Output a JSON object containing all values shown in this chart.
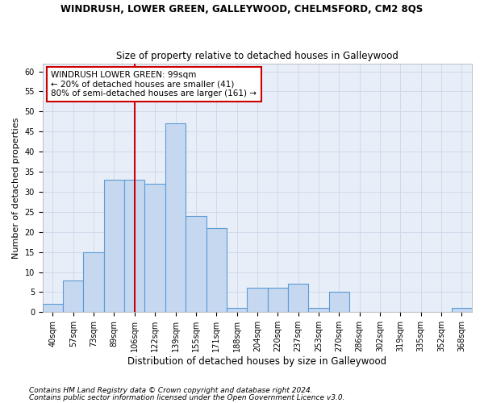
{
  "title": "WINDRUSH, LOWER GREEN, GALLEYWOOD, CHELMSFORD, CM2 8QS",
  "subtitle": "Size of property relative to detached houses in Galleywood",
  "xlabel": "Distribution of detached houses by size in Galleywood",
  "ylabel": "Number of detached properties",
  "categories": [
    "40sqm",
    "57sqm",
    "73sqm",
    "89sqm",
    "106sqm",
    "122sqm",
    "139sqm",
    "155sqm",
    "171sqm",
    "188sqm",
    "204sqm",
    "220sqm",
    "237sqm",
    "253sqm",
    "270sqm",
    "286sqm",
    "302sqm",
    "319sqm",
    "335sqm",
    "352sqm",
    "368sqm"
  ],
  "bar_heights": [
    2,
    8,
    15,
    33,
    33,
    32,
    47,
    24,
    21,
    1,
    6,
    6,
    7,
    1,
    5,
    0,
    0,
    0,
    0,
    0,
    1
  ],
  "bar_face_color": "#c5d8f0",
  "bar_edge_color": "#5b9bd5",
  "vline_x_index": 4,
  "vline_color": "#cc0000",
  "annotation_text": "WINDRUSH LOWER GREEN: 99sqm\n← 20% of detached houses are smaller (41)\n80% of semi-detached houses are larger (161) →",
  "annotation_box_color": "#ffffff",
  "annotation_box_edge": "#cc0000",
  "ylim": [
    0,
    62
  ],
  "yticks": [
    0,
    5,
    10,
    15,
    20,
    25,
    30,
    35,
    40,
    45,
    50,
    55,
    60
  ],
  "grid_color": "#d0daea",
  "footer1": "Contains HM Land Registry data © Crown copyright and database right 2024.",
  "footer2": "Contains public sector information licensed under the Open Government Licence v3.0.",
  "background_color": "#e8eef8",
  "title_fontsize": 8.5,
  "subtitle_fontsize": 8.5,
  "tick_fontsize": 7,
  "ylabel_fontsize": 8,
  "xlabel_fontsize": 8.5,
  "annotation_fontsize": 7.5,
  "footer_fontsize": 6.5
}
